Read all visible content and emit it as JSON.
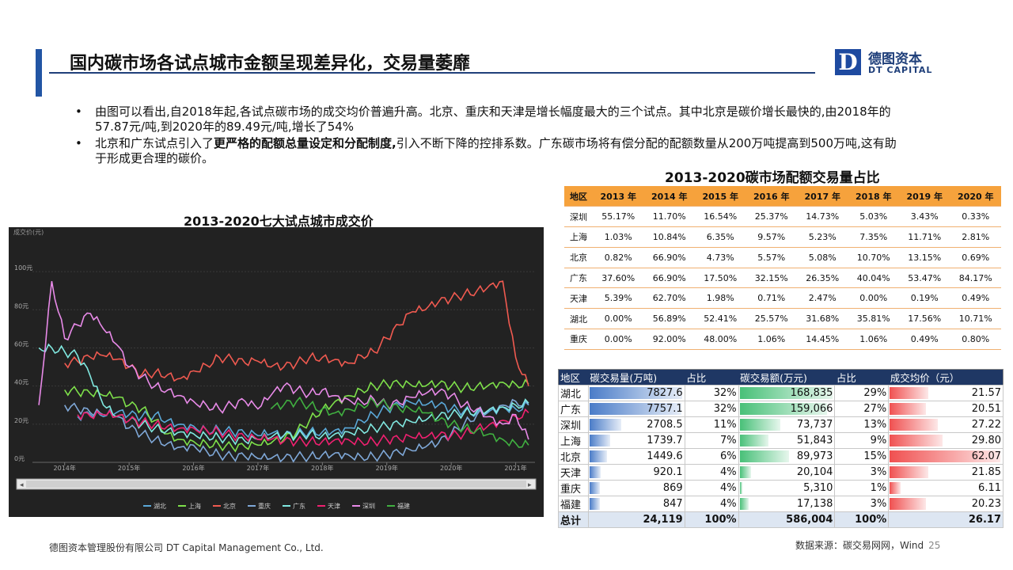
{
  "header": {
    "title": "国内碳市场各试点城市金额呈现差异化，交易量萎靡"
  },
  "logo": {
    "mark": "D",
    "cn": "德图资本",
    "en": "DT CAPITAL"
  },
  "bullets": [
    "由图可以看出,自2018年起,各试点碳市场的成交均价普遍升高。北京、重庆和天津是增长幅度最大的三个试点。其中北京是碳价增长最快的,由2018年的57.87元/吨,到2020年的89.49元/吨,增长了54%",
    {
      "pre": "北京和广东试点引入了",
      "bold": "更严格的配额总量设定和分配制度,",
      "post": "引入不断下降的控排系数。广东碳市场将有偿分配的配额数量从200万吨提高到500万吨,这有助于形成更合理的碳价。"
    }
  ],
  "chart_data": {
    "type": "line",
    "title": "2013-2020七大试点城市成交价",
    "ylabel": "成交价(元)",
    "yticks": [
      "0元",
      "20元",
      "40元",
      "60元",
      "80元",
      "100元"
    ],
    "ylim": [
      0,
      115
    ],
    "xticks": [
      "2014年",
      "2015年",
      "2016年",
      "2017年",
      "2018年",
      "2019年",
      "2020年",
      "2021年"
    ],
    "x": [
      2013.6,
      2013.8,
      2014.0,
      2014.2,
      2014.4,
      2014.6,
      2014.8,
      2015.0,
      2015.2,
      2015.4,
      2015.6,
      2015.8,
      2016.0,
      2016.2,
      2016.4,
      2016.6,
      2016.8,
      2017.0,
      2017.2,
      2017.4,
      2017.6,
      2017.8,
      2018.0,
      2018.2,
      2018.4,
      2018.6,
      2018.8,
      2019.0,
      2019.2,
      2019.4,
      2019.6,
      2019.8,
      2020.0,
      2020.2,
      2020.4,
      2020.6,
      2020.8,
      2021.0,
      2021.2
    ],
    "series": [
      {
        "name": "湖北",
        "color": "#5aa8d8",
        "values": [
          null,
          null,
          null,
          24,
          25,
          24,
          26,
          25,
          24,
          25,
          22,
          20,
          19,
          17,
          17,
          16,
          15,
          14,
          15,
          14,
          15,
          16,
          16,
          17,
          18,
          22,
          25,
          28,
          30,
          31,
          30,
          30,
          28,
          27,
          26,
          27,
          29,
          28,
          30
        ]
      },
      {
        "name": "上海",
        "color": "#7ee04a",
        "values": [
          null,
          null,
          38,
          37,
          36,
          35,
          34,
          30,
          28,
          22,
          15,
          12,
          11,
          10,
          9,
          8,
          8,
          9,
          10,
          12,
          16,
          22,
          28,
          32,
          35,
          38,
          40,
          41,
          41,
          40,
          40,
          41,
          40,
          39,
          40,
          41,
          42,
          41,
          41
        ]
      },
      {
        "name": "北京",
        "color": "#f05a50",
        "values": [
          null,
          null,
          52,
          53,
          55,
          56,
          54,
          50,
          46,
          47,
          46,
          44,
          48,
          51,
          55,
          54,
          52,
          53,
          50,
          50,
          52,
          55,
          55,
          54,
          52,
          56,
          58,
          65,
          72,
          79,
          80,
          84,
          86,
          88,
          90,
          93,
          95,
          55,
          40
        ]
      },
      {
        "name": "重庆",
        "color": "#7fa8d8",
        "values": [
          null,
          null,
          30,
          28,
          26,
          25,
          24,
          18,
          15,
          12,
          10,
          8,
          9,
          6,
          4,
          3,
          3,
          2,
          2,
          2,
          3,
          3,
          4,
          5,
          4,
          3,
          3,
          4,
          5,
          6,
          8,
          10,
          15,
          20,
          25,
          28,
          30,
          32,
          30
        ]
      },
      {
        "name": "广东",
        "color": "#80e8e0",
        "values": [
          60,
          60,
          58,
          56,
          45,
          30,
          24,
          22,
          20,
          18,
          17,
          16,
          15,
          14,
          13,
          12,
          11,
          12,
          13,
          14,
          14,
          15,
          14,
          15,
          16,
          17,
          18,
          19,
          20,
          21,
          22,
          24,
          25,
          26,
          27,
          28,
          29,
          30,
          31
        ]
      },
      {
        "name": "天津",
        "color": "#f02070",
        "values": [
          null,
          null,
          null,
          25,
          24,
          25,
          24,
          22,
          21,
          20,
          19,
          18,
          18,
          17,
          16,
          14,
          13,
          12,
          12,
          11,
          11,
          11,
          11,
          12,
          12,
          11,
          11,
          12,
          12,
          13,
          13,
          14,
          14,
          15,
          18,
          20,
          22,
          24,
          26
        ]
      },
      {
        "name": "深圳",
        "color": "#e88ae8",
        "values": [
          30,
          95,
          65,
          72,
          78,
          70,
          62,
          50,
          45,
          40,
          38,
          35,
          32,
          30,
          28,
          30,
          32,
          28,
          35,
          40,
          38,
          36,
          38,
          35,
          33,
          32,
          33,
          30,
          31,
          34,
          36,
          37,
          35,
          30,
          28,
          24,
          20,
          25,
          12
        ]
      },
      {
        "name": "福建",
        "color": "#40b040",
        "values": [
          null,
          null,
          null,
          null,
          null,
          null,
          null,
          null,
          null,
          null,
          null,
          null,
          null,
          null,
          null,
          null,
          null,
          null,
          28,
          30,
          32,
          30,
          28,
          26,
          28,
          30,
          32,
          30,
          28,
          27,
          26,
          22,
          20,
          18,
          17,
          15,
          12,
          10,
          9
        ]
      }
    ]
  },
  "table1": {
    "title": "2013-2020碳市场配额交易量占比",
    "headers": [
      "地区",
      "2013 年",
      "2014 年",
      "2015 年",
      "2016 年",
      "2017 年",
      "2018 年",
      "2019 年",
      "2020 年"
    ],
    "rows": [
      [
        "深圳",
        "55.17%",
        "11.70%",
        "16.54%",
        "25.37%",
        "14.73%",
        "5.03%",
        "3.43%",
        "0.33%"
      ],
      [
        "上海",
        "1.03%",
        "10.84%",
        "6.35%",
        "9.57%",
        "5.23%",
        "7.35%",
        "11.71%",
        "2.81%"
      ],
      [
        "北京",
        "0.82%",
        "66.90%",
        "4.73%",
        "5.57%",
        "5.08%",
        "10.70%",
        "13.15%",
        "0.69%"
      ],
      [
        "广东",
        "37.60%",
        "66.90%",
        "17.50%",
        "32.15%",
        "26.35%",
        "40.04%",
        "53.47%",
        "84.17%"
      ],
      [
        "天津",
        "5.39%",
        "62.70%",
        "1.98%",
        "0.71%",
        "2.47%",
        "0.00%",
        "0.19%",
        "0.49%"
      ],
      [
        "湖北",
        "0.00%",
        "56.89%",
        "52.41%",
        "25.57%",
        "31.68%",
        "35.81%",
        "17.56%",
        "10.71%"
      ],
      [
        "重庆",
        "0.00%",
        "92.00%",
        "48.00%",
        "1.06%",
        "14.45%",
        "1.06%",
        "0.49%",
        "0.80%"
      ]
    ]
  },
  "table2": {
    "headers": [
      "地区",
      "碳交易量(万吨)",
      "占比",
      "碳交易额(万元)",
      "占比",
      "成交均价（元）"
    ],
    "rows": [
      {
        "region": "湖北",
        "vol": "7827.6",
        "volp": "32%",
        "amt": "168,835",
        "amtp": "29%",
        "price": "21.57",
        "vol_n": 7827.6,
        "amt_n": 168835,
        "price_n": 21.57
      },
      {
        "region": "广东",
        "vol": "7757.1",
        "volp": "32%",
        "amt": "159,066",
        "amtp": "27%",
        "price": "20.51",
        "vol_n": 7757.1,
        "amt_n": 159066,
        "price_n": 20.51
      },
      {
        "region": "深圳",
        "vol": "2708.5",
        "volp": "11%",
        "amt": "73,737",
        "amtp": "13%",
        "price": "27.22",
        "vol_n": 2708.5,
        "amt_n": 73737,
        "price_n": 27.22
      },
      {
        "region": "上海",
        "vol": "1739.7",
        "volp": "7%",
        "amt": "51,843",
        "amtp": "9%",
        "price": "29.80",
        "vol_n": 1739.7,
        "amt_n": 51843,
        "price_n": 29.8
      },
      {
        "region": "北京",
        "vol": "1449.6",
        "volp": "6%",
        "amt": "89,973",
        "amtp": "15%",
        "price": "62.07",
        "vol_n": 1449.6,
        "amt_n": 89973,
        "price_n": 62.07
      },
      {
        "region": "天津",
        "vol": "920.1",
        "volp": "4%",
        "amt": "20,104",
        "amtp": "3%",
        "price": "21.85",
        "vol_n": 920.1,
        "amt_n": 20104,
        "price_n": 21.85
      },
      {
        "region": "重庆",
        "vol": "869",
        "volp": "4%",
        "amt": "5,310",
        "amtp": "1%",
        "price": "6.11",
        "vol_n": 869,
        "amt_n": 5310,
        "price_n": 6.11
      },
      {
        "region": "福建",
        "vol": "847",
        "volp": "4%",
        "amt": "17,138",
        "amtp": "3%",
        "price": "20.23",
        "vol_n": 847,
        "amt_n": 17138,
        "price_n": 20.23
      }
    ],
    "total": {
      "region": "总计",
      "vol": "24,119",
      "volp": "100%",
      "amt": "586,004",
      "amtp": "100%",
      "price": "26.17"
    },
    "colors": {
      "vol": "#4a7cc8",
      "amt": "#48c078",
      "price": "#f05050"
    }
  },
  "footer": {
    "left": "德图资本管理股份有限公司  DT Capital Management  Co., Ltd.",
    "source": "数据来源：碳交易网网，Wind",
    "page": "25"
  }
}
